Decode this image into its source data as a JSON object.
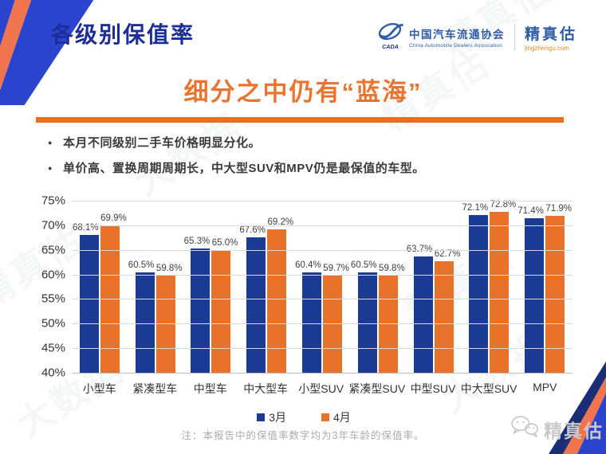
{
  "header": {
    "title": "各级别保值率",
    "org": {
      "name_cn": "中国汽车流通协会",
      "name_en": "China Automobile Dealers Association",
      "logo_caption": "CADA"
    },
    "brand": {
      "name": "精真估",
      "site": "jingzhengu.com"
    }
  },
  "main": {
    "headline": "细分之中仍有“蓝海”",
    "bullets": [
      "本月不同级别二手车价格明显分化。",
      "单价高、置换周期周期长，中大型SUV和MPV仍是最保值的车型。"
    ],
    "note": "注：本报告中的保值率数字均为3年车龄的保值率。"
  },
  "footer": {
    "brand": "精真估"
  },
  "watermark_texts": {
    "jingzhengu": "精真估",
    "bigdata": "大数据"
  },
  "icons": {
    "org_logo": "cada-swoosh-logo",
    "footer_logo": "wechat-chat-bubbles-icon"
  },
  "colors": {
    "title_blue": "#1C2F97",
    "headline_orange": "#E9742F",
    "rule_orange": "#E96E1E",
    "bar_blue": "#1A3A94",
    "bar_orange": "#E8722A",
    "deco_royal_blue": "#2B44CE",
    "deco_salmon": "#F0744E",
    "deco_navy": "#1A2D77",
    "gridline": "#DADADA",
    "note_gray": "#ABABAB"
  },
  "chart_data": {
    "type": "bar",
    "categories": [
      "小型车",
      "紧凑型车",
      "中型车",
      "中大型车",
      "小型SUV",
      "紧凑型SUV",
      "中型SUV",
      "中大型SUV",
      "MPV"
    ],
    "series": [
      {
        "name": "3月",
        "color": "#1A3A94",
        "values": [
          68.1,
          60.5,
          65.3,
          67.6,
          60.4,
          60.5,
          63.7,
          72.1,
          71.4
        ]
      },
      {
        "name": "4月",
        "color": "#E8722A",
        "values": [
          69.9,
          59.8,
          65.0,
          69.2,
          59.7,
          59.8,
          62.7,
          72.8,
          71.9
        ]
      }
    ],
    "title": "",
    "xlabel": "",
    "ylabel": "",
    "ylim": [
      40,
      75
    ],
    "ytick_step": 5,
    "ytick_format": "{v}%",
    "value_label_format": "{v}%",
    "grid": true,
    "legend_position": "bottom"
  }
}
